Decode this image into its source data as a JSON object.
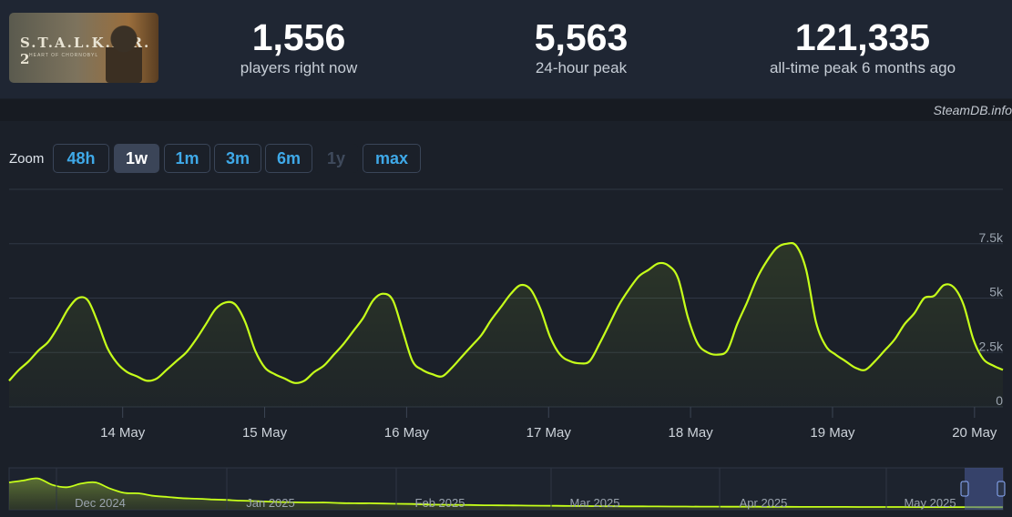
{
  "game": {
    "thumbnail_title": "S.T.A.L.K.E.R. 2",
    "thumbnail_subtitle": "HEART OF CHORNOBYL"
  },
  "stats": [
    {
      "value": "1,556",
      "label": "players right now"
    },
    {
      "value": "5,563",
      "label": "24-hour peak"
    },
    {
      "value": "121,335",
      "label": "all-time peak 6 months ago"
    }
  ],
  "credit": "SteamDB.info",
  "zoom": {
    "label": "Zoom",
    "buttons": [
      {
        "label": "48h",
        "state": "normal"
      },
      {
        "label": "1w",
        "state": "active"
      },
      {
        "label": "1m",
        "state": "normal"
      },
      {
        "label": "3m",
        "state": "normal"
      },
      {
        "label": "6m",
        "state": "normal"
      },
      {
        "label": "1y",
        "state": "disabled"
      },
      {
        "label": "max",
        "state": "normal"
      }
    ]
  },
  "colors": {
    "line": "#c6ff1a",
    "accent": "#3fa9e8",
    "background": "#1b2029",
    "grid": "#2f3744"
  },
  "chart_data": {
    "type": "line",
    "series": [
      {
        "values": [
          1200,
          1700,
          2100,
          2600,
          3000,
          3700,
          4500,
          5000,
          4900,
          3900,
          2700,
          2000,
          1600,
          1400,
          1200,
          1300,
          1700,
          2100,
          2500,
          3100,
          3800,
          4500,
          4800,
          4700,
          3900,
          2600,
          1800,
          1500,
          1300,
          1100,
          1200,
          1600,
          1900,
          2400,
          2900,
          3500,
          4100,
          4900,
          5200,
          4900,
          3500,
          2100,
          1700,
          1500,
          1400,
          1800,
          2300,
          2800,
          3300,
          4000,
          4600,
          5200,
          5600,
          5400,
          4500,
          3200,
          2400,
          2100,
          2000,
          2100,
          2900,
          3800,
          4700,
          5400,
          6000,
          6300,
          6600,
          6500,
          5900,
          4100,
          2900,
          2500,
          2400,
          2600,
          3800,
          4800,
          5900,
          6700,
          7300,
          7500,
          7400,
          6300,
          3900,
          2800,
          2400,
          2100,
          1800,
          1700,
          2100,
          2600,
          3100,
          3800,
          4300,
          5000,
          5100,
          5600,
          5500,
          4700,
          3100,
          2200,
          1900,
          1700
        ]
      }
    ],
    "x_range_days": [
      13.2,
      20.2
    ],
    "x_ticks": [
      "14 May",
      "15 May",
      "16 May",
      "17 May",
      "18 May",
      "19 May",
      "20 May"
    ],
    "ylim": [
      0,
      10000
    ],
    "y_ticks": [
      "0",
      "2.5k",
      "5k",
      "7.5k"
    ],
    "grid": true,
    "overview": {
      "x_ticks": [
        "Dec 2024",
        "Jan 2025",
        "Feb 2025",
        "Mar 2025",
        "Apr 2025",
        "May 2025"
      ],
      "values": [
        105000,
        113000,
        121335,
        95000,
        85000,
        100000,
        105000,
        80000,
        62000,
        60000,
        50000,
        45000,
        40000,
        38000,
        35000,
        33000,
        30000,
        28000,
        26000,
        24000,
        23000,
        22000,
        22000,
        20000,
        19000,
        19000,
        18000,
        17000,
        16000,
        14000,
        13000,
        12500,
        12000,
        11000,
        10500,
        10000,
        9500,
        9000,
        8500,
        8000,
        7500,
        7000,
        6800,
        6500,
        6200,
        6000,
        5800,
        5500,
        5300,
        5200,
        5000,
        4800,
        4700,
        4500,
        4400,
        4300,
        4200,
        4100,
        4000,
        3900,
        3800,
        3700,
        3600,
        3500,
        3400,
        3300,
        3300,
        3200,
        3100,
        3000
      ],
      "ylim": [
        0,
        150000
      ],
      "selected_range": "last 1 week"
    }
  }
}
